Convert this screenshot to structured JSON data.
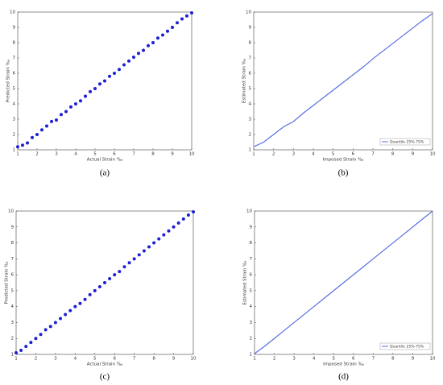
{
  "chart_data": [
    {
      "type": "scatter",
      "caption": "(a)",
      "xlabel": "Actual Strain ‰",
      "ylabel": "Predicted Strain ‰",
      "color": "#1f1fd6",
      "x": [
        1,
        1.25,
        1.5,
        1.75,
        2,
        2.25,
        2.5,
        2.75,
        3,
        3.25,
        3.5,
        3.75,
        4,
        4.25,
        4.5,
        4.75,
        5,
        5.25,
        5.5,
        5.75,
        6,
        6.25,
        6.5,
        6.75,
        7,
        7.25,
        7.5,
        7.75,
        8,
        8.25,
        8.5,
        8.75,
        9,
        9.25,
        9.5,
        9.75,
        10
      ],
      "values": [
        1.2,
        1.3,
        1.45,
        1.8,
        2,
        2.3,
        2.55,
        2.85,
        2.95,
        3.3,
        3.5,
        3.8,
        4,
        4.2,
        4.5,
        4.8,
        5,
        5.3,
        5.5,
        5.8,
        6,
        6.25,
        6.55,
        6.8,
        7.05,
        7.3,
        7.5,
        7.8,
        8,
        8.3,
        8.5,
        8.75,
        9,
        9.3,
        9.55,
        9.75,
        9.95
      ],
      "xlim": [
        1,
        10
      ],
      "ylim": [
        1,
        10
      ],
      "xticks": [
        1,
        2,
        3,
        4,
        5,
        6,
        7,
        8,
        9,
        10
      ],
      "yticks": [
        1,
        2,
        3,
        4,
        5,
        6,
        7,
        8,
        9,
        10
      ]
    },
    {
      "type": "line",
      "caption": "(b)",
      "xlabel": "Imposed Strain ‰",
      "ylabel": "Estimated Strain ‰",
      "x": [
        1,
        1.5,
        2,
        2.5,
        3,
        3.5,
        4,
        4.5,
        5,
        5.5,
        6,
        6.5,
        7,
        7.5,
        8,
        8.5,
        9,
        9.5,
        10
      ],
      "series": [
        {
          "name": "Quantile 25%-75%",
          "color": "#5a6fe0",
          "values": [
            1.2,
            1.5,
            2,
            2.5,
            2.85,
            3.4,
            3.9,
            4.4,
            4.9,
            5.4,
            5.9,
            6.4,
            6.95,
            7.45,
            7.95,
            8.45,
            8.95,
            9.45,
            9.9
          ]
        }
      ],
      "legend": "lower right",
      "xlim": [
        1,
        10
      ],
      "ylim": [
        1,
        10
      ],
      "xticks": [
        1,
        2,
        3,
        4,
        5,
        6,
        7,
        8,
        9,
        10
      ],
      "yticks": [
        1,
        2,
        3,
        4,
        5,
        6,
        7,
        8,
        9,
        10
      ]
    },
    {
      "type": "scatter",
      "caption": "(c)",
      "xlabel": "Actual Strain ‰",
      "ylabel": "Predicted Strain ‰",
      "color": "#1f1fd6",
      "x": [
        1,
        1.25,
        1.5,
        1.75,
        2,
        2.25,
        2.5,
        2.75,
        3,
        3.25,
        3.5,
        3.75,
        4,
        4.25,
        4.5,
        4.75,
        5,
        5.25,
        5.5,
        5.75,
        6,
        6.25,
        6.5,
        6.75,
        7,
        7.25,
        7.5,
        7.75,
        8,
        8.25,
        8.5,
        8.75,
        9,
        9.25,
        9.5,
        9.75,
        10
      ],
      "values": [
        1.1,
        1.25,
        1.5,
        1.75,
        2,
        2.25,
        2.55,
        2.75,
        3,
        3.25,
        3.5,
        3.75,
        4,
        4.2,
        4.45,
        4.75,
        5,
        5.25,
        5.5,
        5.75,
        6,
        6.2,
        6.5,
        6.75,
        7,
        7.25,
        7.5,
        7.75,
        8,
        8.25,
        8.5,
        8.75,
        9,
        9.25,
        9.5,
        9.75,
        9.95
      ],
      "xlim": [
        1,
        10
      ],
      "ylim": [
        1,
        10
      ],
      "xticks": [
        1,
        2,
        3,
        4,
        5,
        6,
        7,
        8,
        9,
        10
      ],
      "yticks": [
        1,
        2,
        3,
        4,
        5,
        6,
        7,
        8,
        9,
        10
      ]
    },
    {
      "type": "line",
      "caption": "(d)",
      "xlabel": "Imposed Strain ‰",
      "ylabel": "Estimated Strain ‰",
      "x": [
        1,
        1.5,
        2,
        2.5,
        3,
        3.5,
        4,
        4.5,
        5,
        5.5,
        6,
        6.5,
        7,
        7.5,
        8,
        8.5,
        9,
        9.5,
        10
      ],
      "series": [
        {
          "name": "Quantile 25%-75%",
          "color": "#5a6fe0",
          "values": [
            1.05,
            1.5,
            2,
            2.5,
            3,
            3.5,
            4,
            4.5,
            5,
            5.5,
            6,
            6.5,
            7,
            7.5,
            8,
            8.5,
            9,
            9.5,
            10
          ]
        }
      ],
      "legend": "lower right",
      "xlim": [
        1,
        10
      ],
      "ylim": [
        1,
        10
      ],
      "xticks": [
        1,
        2,
        3,
        4,
        5,
        6,
        7,
        8,
        9,
        10
      ],
      "yticks": [
        1,
        2,
        3,
        4,
        5,
        6,
        7,
        8,
        9,
        10
      ]
    }
  ]
}
